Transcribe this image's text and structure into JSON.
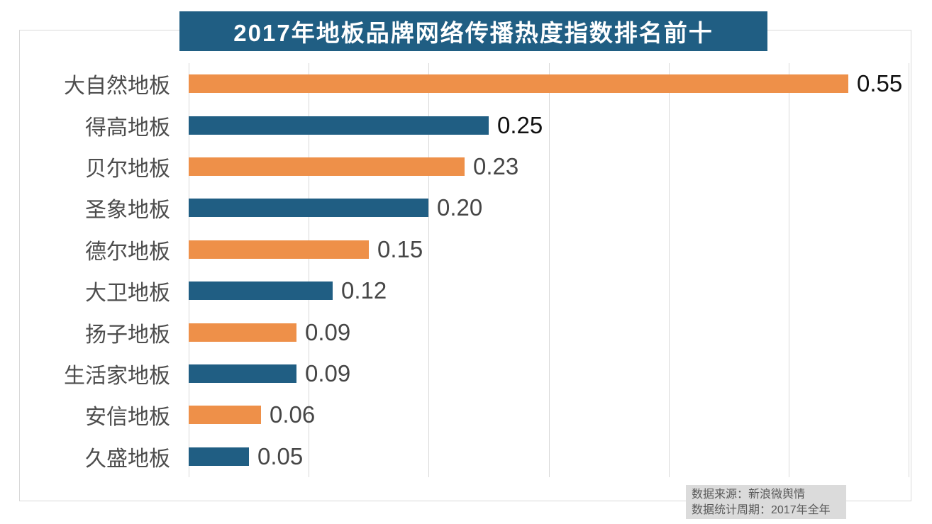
{
  "title": "2017年地板品牌网络传播热度指数排名前十",
  "footer": {
    "source_line": "数据来源：新浪微舆情",
    "period_line": "数据统计周期：2017年全年"
  },
  "colors": {
    "title_bg": "#205e83",
    "title_text": "#ffffff",
    "bar_blue": "#205e83",
    "bar_orange": "#ee9049",
    "grid": "#d9d9d9",
    "frame_border": "#d9d9d9",
    "category_text": "#4d4d4d",
    "value_black": "#111111",
    "value_gray": "#464646",
    "footer_bg": "#dbdbdb",
    "footer_text": "#595959"
  },
  "chart_data": {
    "type": "bar",
    "orientation": "horizontal",
    "title": "2017年地板品牌网络传播热度指数排名前十",
    "categories": [
      "大自然地板",
      "得高地板",
      "贝尔地板",
      "圣象地板",
      "德尔地板",
      "大卫地板",
      "扬子地板",
      "生活家地板",
      "安信地板",
      "久盛地板"
    ],
    "values": [
      0.55,
      0.25,
      0.23,
      0.2,
      0.15,
      0.12,
      0.09,
      0.09,
      0.06,
      0.05
    ],
    "value_labels": [
      "0.55",
      "0.25",
      "0.23",
      "0.20",
      "0.15",
      "0.12",
      "0.09",
      "0.09",
      "0.06",
      "0.05"
    ],
    "bar_colors": [
      "#ee9049",
      "#205e83",
      "#ee9049",
      "#205e83",
      "#ee9049",
      "#205e83",
      "#ee9049",
      "#205e83",
      "#ee9049",
      "#205e83"
    ],
    "value_label_colors": [
      "#111111",
      "#111111",
      "#464646",
      "#464646",
      "#464646",
      "#464646",
      "#464646",
      "#464646",
      "#464646",
      "#464646"
    ],
    "xlim": [
      0,
      0.6
    ],
    "grid_step": 0.1,
    "grid": true,
    "legend": "none",
    "xlabel": "",
    "ylabel": "",
    "source_note": "数据来源：新浪微舆情",
    "period_note": "数据统计周期：2017年全年"
  }
}
